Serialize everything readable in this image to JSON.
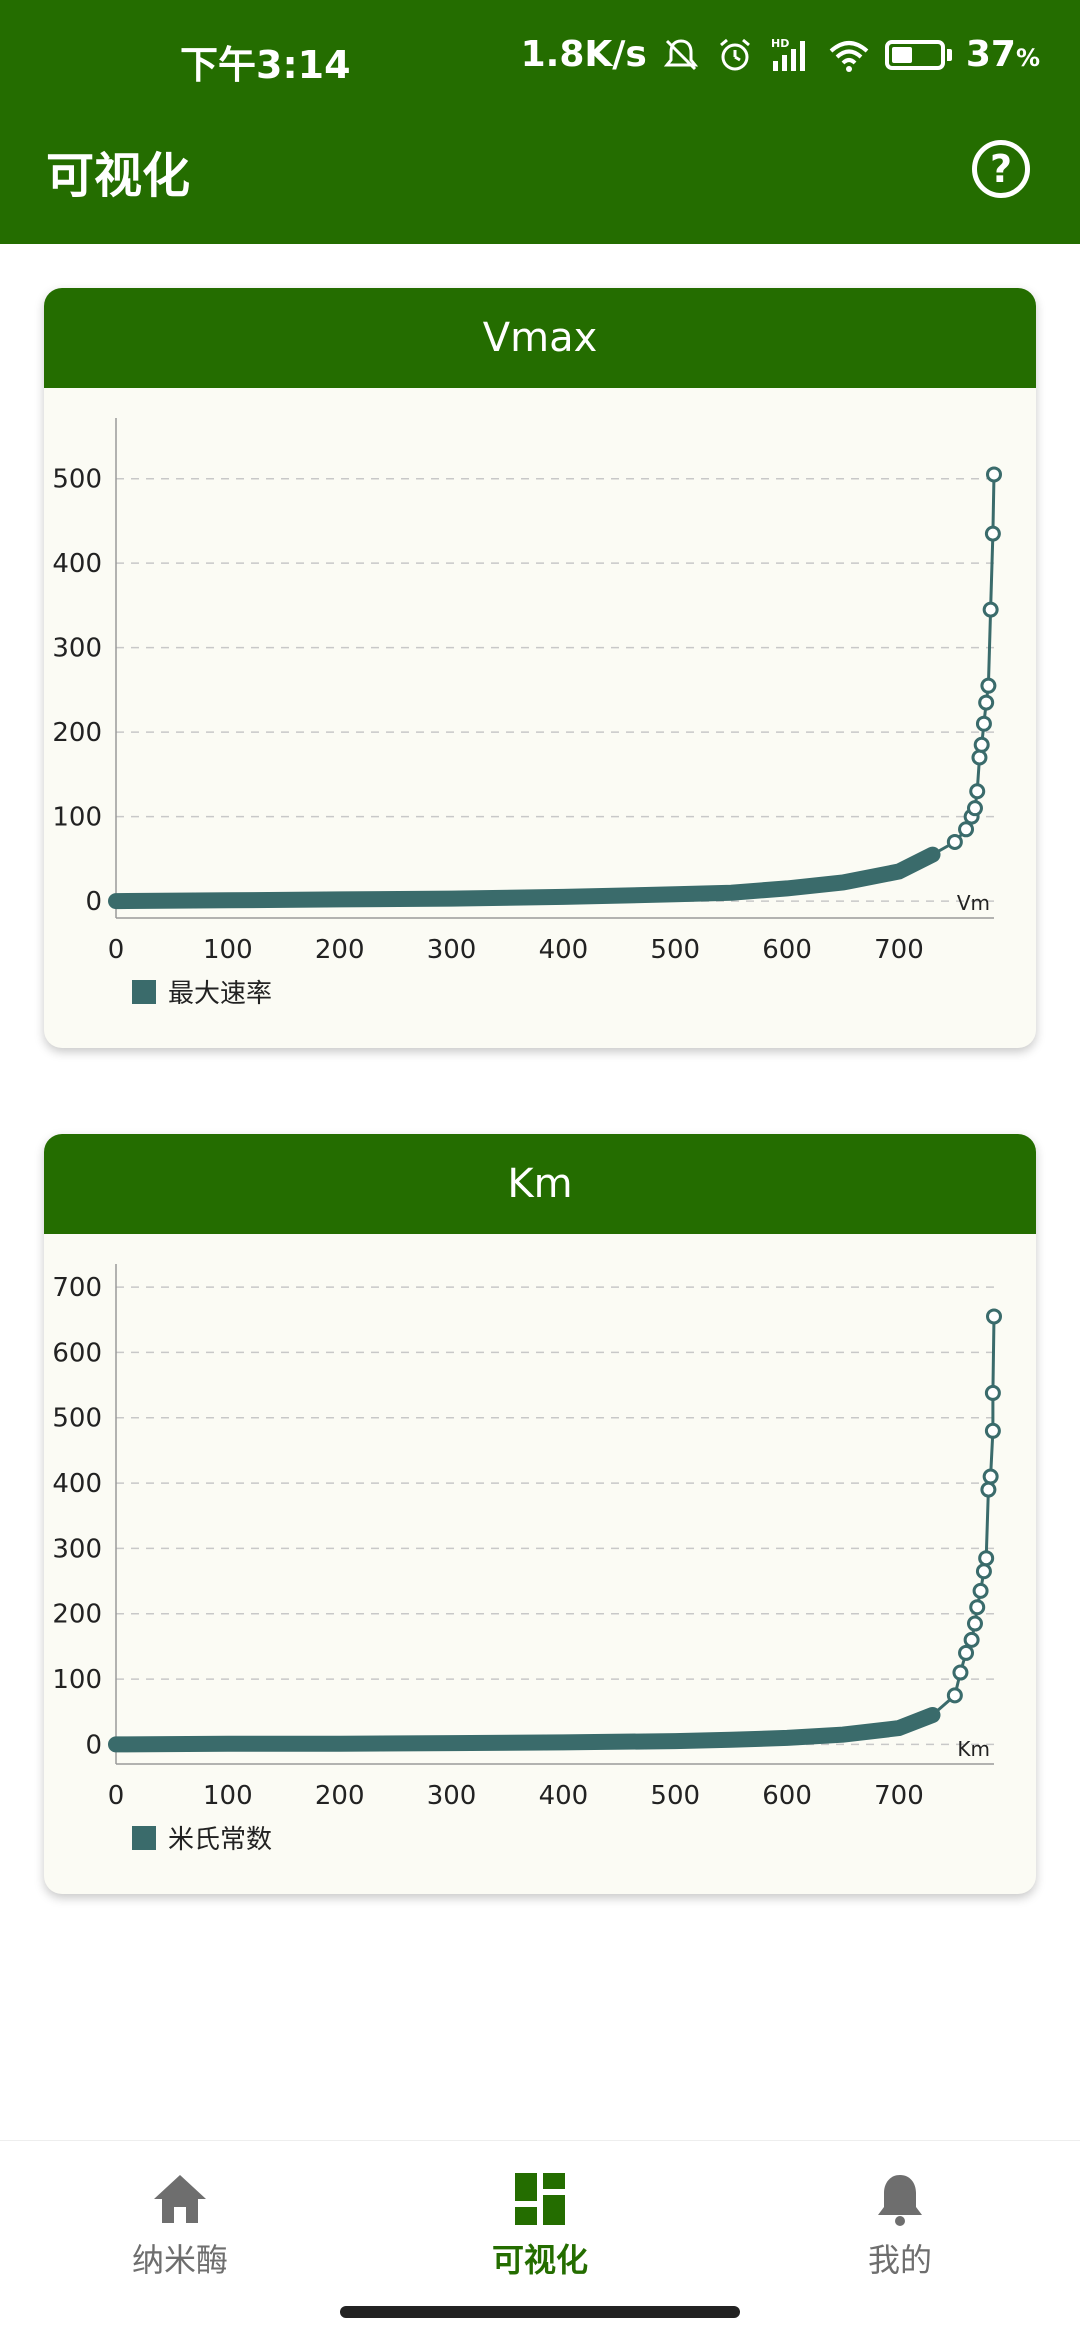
{
  "status_bar": {
    "time": "下午3:14",
    "network_speed": "1.8K/s",
    "battery_percent": "37",
    "battery_suffix": "%",
    "icons": [
      "mute-bell-icon",
      "alarm-icon",
      "hd-signal-icon",
      "wifi-icon",
      "battery-icon"
    ]
  },
  "app_bar": {
    "title": "可视化",
    "help_icon": "question-circle-icon",
    "help_glyph": "?"
  },
  "charts": [
    {
      "header": "Vmax",
      "legend": "最大速率",
      "axis_end_label": "Vm"
    },
    {
      "header": "Km",
      "legend": "米氏常数",
      "axis_end_label": "Km"
    }
  ],
  "chart_data": [
    {
      "type": "line",
      "title": "Vmax",
      "series": [
        {
          "name": "最大速率",
          "color": "#3a6b6b",
          "x": [
            0,
            100,
            200,
            300,
            400,
            500,
            550,
            600,
            650,
            700,
            730,
            750,
            760,
            765,
            768,
            770,
            772,
            774,
            776,
            778,
            780,
            782,
            784
          ],
          "values": [
            0,
            1,
            2,
            3,
            5,
            8,
            10,
            15,
            22,
            35,
            55,
            70,
            85,
            100,
            110,
            130,
            170,
            185,
            210,
            235,
            255,
            345,
            435
          ]
        }
      ],
      "tail_point": {
        "x": 785,
        "y": 505
      },
      "x_ticks": [
        "0",
        "100",
        "200",
        "300",
        "400",
        "500",
        "600",
        "700"
      ],
      "y_ticks": [
        "0",
        "100",
        "200",
        "300",
        "400",
        "500"
      ],
      "xlim": [
        0,
        785
      ],
      "ylim": [
        -20,
        560
      ],
      "xlabel": "Vm",
      "ylabel": "",
      "grid": true,
      "legend_position": "bottom-left"
    },
    {
      "type": "line",
      "title": "Km",
      "series": [
        {
          "name": "米氏常数",
          "color": "#3a6b6b",
          "x": [
            0,
            100,
            200,
            300,
            400,
            500,
            550,
            600,
            650,
            700,
            730,
            750,
            755,
            760,
            765,
            768,
            770,
            773,
            776,
            778,
            780,
            782,
            784
          ],
          "values": [
            0,
            1,
            1,
            2,
            3,
            5,
            7,
            10,
            15,
            25,
            45,
            75,
            110,
            140,
            160,
            185,
            210,
            235,
            265,
            285,
            390,
            410,
            480
          ]
        }
      ],
      "tail_point": {
        "x": 785,
        "y": 655
      },
      "extra_point": {
        "x": 784,
        "y": 538
      },
      "x_ticks": [
        "0",
        "100",
        "200",
        "300",
        "400",
        "500",
        "600",
        "700"
      ],
      "y_ticks": [
        "0",
        "100",
        "200",
        "300",
        "400",
        "500",
        "600",
        "700"
      ],
      "xlim": [
        0,
        785
      ],
      "ylim": [
        -30,
        720
      ],
      "xlabel": "Km",
      "ylabel": "",
      "grid": true,
      "legend_position": "bottom-left"
    }
  ],
  "bottom_nav": {
    "items": [
      {
        "label": "纳米酶",
        "icon": "home-icon",
        "active": false
      },
      {
        "label": "可视化",
        "icon": "dashboard-icon",
        "active": true
      },
      {
        "label": "我的",
        "icon": "bell-icon",
        "active": false
      }
    ]
  }
}
